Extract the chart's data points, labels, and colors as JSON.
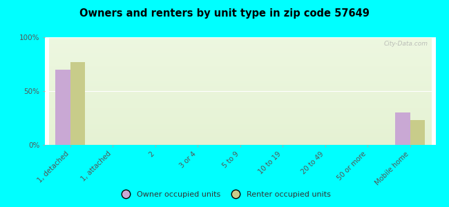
{
  "title": "Owners and renters by unit type in zip code 57649",
  "categories": [
    "1, detached",
    "1, attached",
    "2",
    "3 or 4",
    "5 to 9",
    "10 to 19",
    "20 to 49",
    "50 or more",
    "Mobile home"
  ],
  "owner_values": [
    70,
    0,
    0,
    0,
    0,
    0,
    0,
    0,
    30
  ],
  "renter_values": [
    77,
    0,
    0,
    0,
    0,
    0,
    0,
    0,
    23
  ],
  "owner_color": "#c9a8d4",
  "renter_color": "#c8cc8a",
  "background_color": "#00ffff",
  "yticks": [
    0,
    50,
    100
  ],
  "ylim": [
    0,
    100
  ],
  "bar_width": 0.35,
  "legend_owner": "Owner occupied units",
  "legend_renter": "Renter occupied units",
  "watermark": "City-Data.com"
}
